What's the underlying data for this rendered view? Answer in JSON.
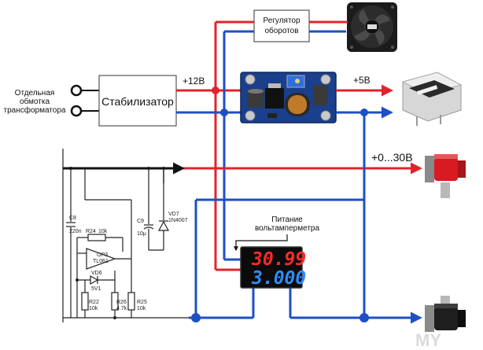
{
  "labels": {
    "separate_winding": [
      "Отдельная",
      "обмотка",
      "трансформатора"
    ],
    "stabilizer": "Стабилизатор",
    "fan_regulator": [
      "Регулятор",
      "оборотов"
    ],
    "plus12": "+12В",
    "plus5": "+5В",
    "plus0_30": "+0...30В",
    "voltmeter_power": [
      "Питание",
      "вольтамперметра"
    ]
  },
  "meter": {
    "voltage": "30.99",
    "current": "3.000"
  },
  "components": {
    "c8": [
      "C8",
      "220n"
    ],
    "c9": [
      "C9",
      "10μ"
    ],
    "vd7": [
      "VD7",
      "1N4007"
    ],
    "r24": [
      "R24",
      "10k"
    ],
    "op3": [
      "OP3",
      "TL061"
    ],
    "vd6": [
      "VD6",
      "5V1"
    ],
    "r22": [
      "R22",
      "10k"
    ],
    "r26": [
      "R26",
      "4.7k"
    ],
    "r25": [
      "R25",
      "10k"
    ]
  },
  "colors": {
    "red_wire": "#e0242c",
    "blue_wire": "#1f4fc4",
    "black_wire": "#111111"
  },
  "watermark": "MY"
}
